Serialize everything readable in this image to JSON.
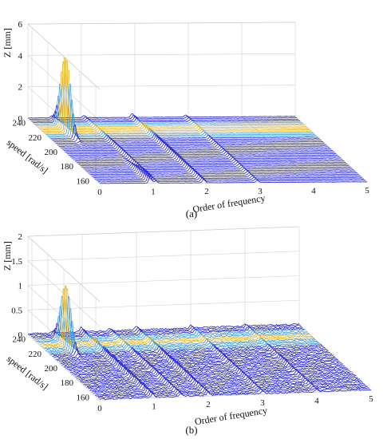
{
  "figure": {
    "captions": [
      "(a)",
      "(b)"
    ]
  },
  "colors": {
    "line": "#2525cc",
    "peak_mid": "#3a9bd8",
    "peak_high": "#e0b020",
    "axis": "#222222",
    "grid": "#d0d0d0"
  },
  "chart_data": [
    {
      "type": "waterfall",
      "caption": "(a)",
      "zlabel": "Z [mm]",
      "ylabel": "speed [rad/s]",
      "xlabel": "Order of frequency",
      "zlim": [
        0,
        6
      ],
      "z_ticks": [
        0,
        2,
        4,
        6
      ],
      "speed_ticks": [
        240,
        220,
        200,
        180,
        160
      ],
      "order_ticks": [
        0,
        1,
        2,
        3,
        4,
        5
      ],
      "order_range": [
        0,
        5
      ],
      "speed_range": [
        155,
        245
      ],
      "grid": true,
      "slice_count": 45,
      "components": [
        {
          "order": 0.45,
          "max_amplitude": 5.0,
          "speed_center": 228,
          "speed_width": 9
        },
        {
          "order": 0.95,
          "max_amplitude": 0.6,
          "speed_center": 160,
          "speed_width": 18
        },
        {
          "order": 1.05,
          "max_amplitude": 0.25,
          "speed_center": 200,
          "speed_width": 60
        },
        {
          "order": 1.95,
          "max_amplitude": 0.35,
          "speed_center": 200,
          "speed_width": 80
        },
        {
          "order": 2.95,
          "max_amplitude": 0.18,
          "speed_center": 200,
          "speed_width": 90
        }
      ],
      "noise_level": 0.02
    },
    {
      "type": "waterfall",
      "caption": "(b)",
      "zlabel": "Z [mm]",
      "ylabel": "speed [rad/s]",
      "xlabel": "Order of frequency",
      "zlim": [
        0,
        2
      ],
      "z_ticks": [
        0,
        0.5,
        1,
        1.5,
        2
      ],
      "speed_ticks": [
        240,
        220,
        200,
        180,
        160
      ],
      "order_ticks": [
        0,
        1,
        2,
        3,
        4,
        5
      ],
      "order_range": [
        0,
        5
      ],
      "speed_range": [
        155,
        245
      ],
      "grid": true,
      "slice_count": 45,
      "components": [
        {
          "order": 0.45,
          "max_amplitude": 1.3,
          "speed_center": 228,
          "speed_width": 9
        },
        {
          "order": 0.98,
          "max_amplitude": 0.12,
          "speed_center": 200,
          "speed_width": 90
        },
        {
          "order": 1.5,
          "max_amplitude": 0.08,
          "speed_center": 200,
          "speed_width": 90
        },
        {
          "order": 2.0,
          "max_amplitude": 0.1,
          "speed_center": 200,
          "speed_width": 90
        },
        {
          "order": 3.0,
          "max_amplitude": 0.08,
          "speed_center": 200,
          "speed_width": 90
        },
        {
          "order": 4.0,
          "max_amplitude": 0.06,
          "speed_center": 200,
          "speed_width": 90
        }
      ],
      "noise_level": 0.03
    }
  ]
}
